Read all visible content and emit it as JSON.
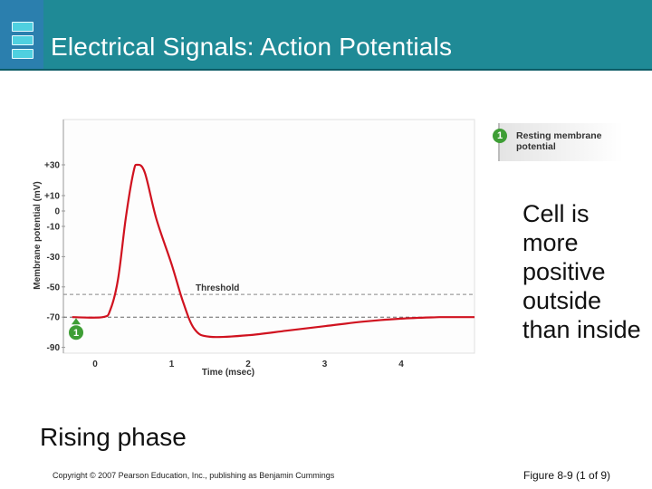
{
  "slide": {
    "title": "Electrical Signals: Action Potentials",
    "description": "Cell is more positive outside than inside",
    "phase_label": "Rising phase",
    "copyright": "Copyright © 2007 Pearson Education, Inc., publishing as Benjamin Cummings",
    "figure_ref": "Figure 8-9 (1 of 9)"
  },
  "colors": {
    "header": "#1f8a96",
    "trace": "#d0121f",
    "marker": "#3e9e35"
  },
  "diagram": {
    "callout": {
      "number": "1",
      "label": "Resting membrane potential"
    },
    "marker_number": "1",
    "threshold_label": "Threshold",
    "threshold_mv": -55,
    "resting_mv": -70,
    "xlabel": "Time (msec)",
    "ylabel": "Membrane potential (mV)",
    "yticks": [
      "+30",
      "+10",
      "0",
      "-10",
      "-30",
      "-50",
      "-70",
      "-90"
    ],
    "xticks": [
      "0",
      "1",
      "2",
      "3",
      "4"
    ],
    "trace": {
      "x": [
        -0.3,
        0.1,
        0.2,
        0.3,
        0.4,
        0.5,
        0.55,
        0.65,
        0.8,
        1.0,
        1.15,
        1.3,
        1.5,
        2.0,
        2.5,
        3.0,
        3.5,
        4.0,
        4.5
      ],
      "y": [
        -70,
        -70,
        -65,
        -45,
        -5,
        25,
        30,
        25,
        -5,
        -35,
        -60,
        -78,
        -83,
        -82,
        -79,
        -76,
        -73,
        -71,
        -70
      ]
    }
  }
}
